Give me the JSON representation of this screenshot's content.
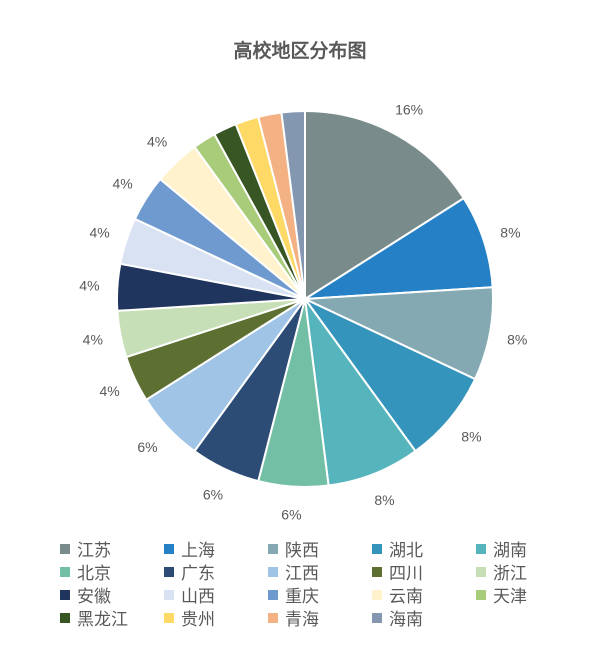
{
  "chart_data": {
    "type": "pie",
    "title": "高校地区分布图",
    "categories": [
      "江苏",
      "上海",
      "陕西",
      "湖北",
      "湖南",
      "北京",
      "广东",
      "江西",
      "四川",
      "浙江",
      "安徽",
      "山西",
      "重庆",
      "云南",
      "天津",
      "黑龙江",
      "贵州",
      "青海",
      "海南"
    ],
    "values": [
      16,
      8,
      8,
      8,
      8,
      6,
      6,
      6,
      4,
      4,
      4,
      4,
      4,
      4,
      2,
      2,
      2,
      2,
      2
    ],
    "data_labels": [
      "16%",
      "8%",
      "8%",
      "8%",
      "8%",
      "6%",
      "6%",
      "6%",
      "4%",
      "4%",
      "4%",
      "4%",
      "4%",
      "4%",
      "",
      "",
      "",
      "",
      ""
    ],
    "colors": [
      "#7a8b8b",
      "#2580c5",
      "#84a9b2",
      "#3594bc",
      "#56b4bd",
      "#73bfa5",
      "#2d4c75",
      "#9fc4e6",
      "#5d7032",
      "#c6dfb6",
      "#1f355e",
      "#d8e2f2",
      "#6f9ad0",
      "#fff2cc",
      "#a9cc7a",
      "#375623",
      "#ffd966",
      "#f4b183",
      "#8497b0"
    ],
    "legend_position": "bottom",
    "start_angle": "12 o'clock, clockwise"
  }
}
